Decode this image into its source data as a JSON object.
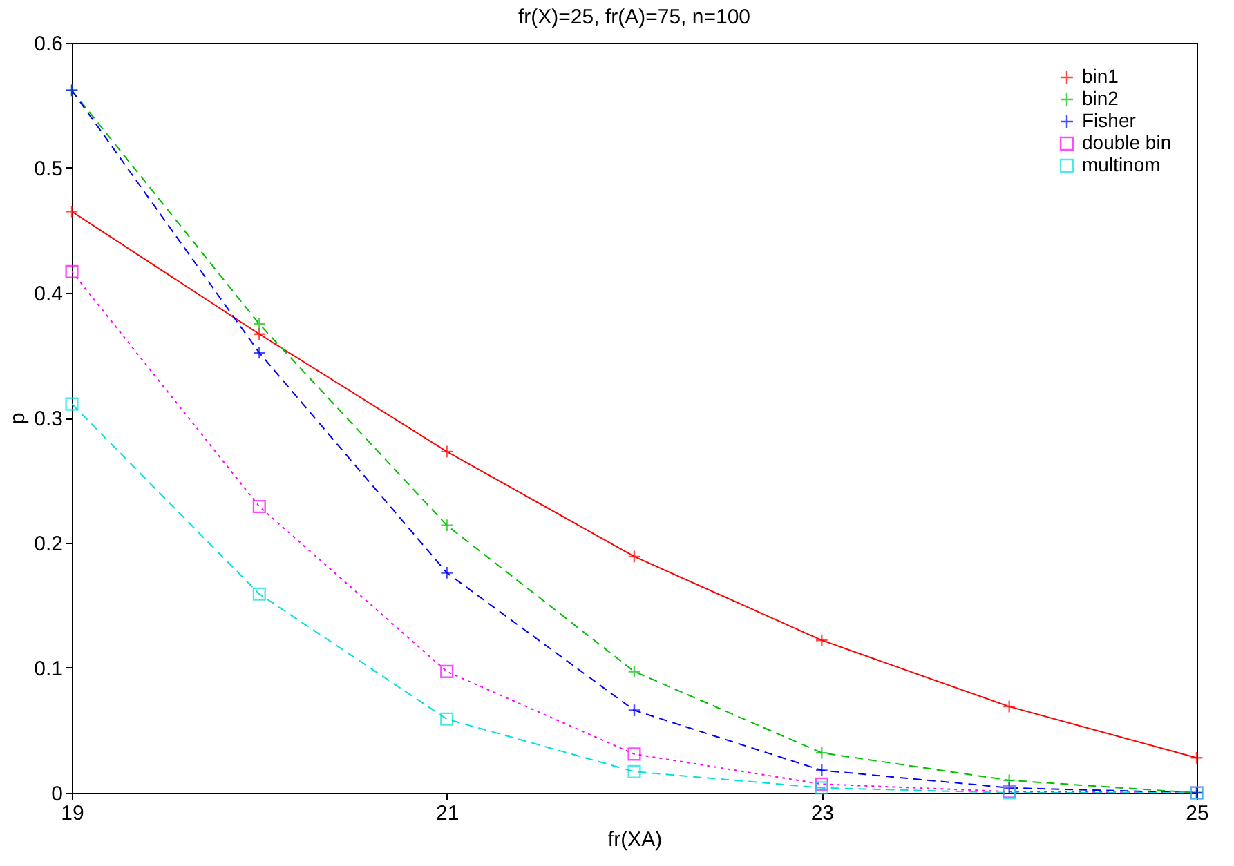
{
  "chart_data": {
    "type": "line",
    "title": "fr(X)=25, fr(A)=75, n=100",
    "xlabel": "fr(XA)",
    "ylabel": "p",
    "x": [
      19,
      20,
      21,
      22,
      23,
      24,
      25
    ],
    "xlim": [
      19,
      25
    ],
    "xticks": [
      19,
      21,
      23,
      25
    ],
    "ylim": [
      0,
      0.6
    ],
    "yticks": [
      0,
      0.1,
      0.2,
      0.3,
      0.4,
      0.5,
      0.6
    ],
    "grid": false,
    "legend": "top right",
    "series": [
      {
        "name": "bin1",
        "color": "#ff0000",
        "marker": "cross",
        "line_style": "solid",
        "values": [
          0.465,
          0.367,
          0.273,
          0.189,
          0.122,
          0.069,
          0.028
        ]
      },
      {
        "name": "bin2",
        "color": "#00c000",
        "marker": "cross",
        "line_style": "dashed",
        "values": [
          0.562,
          0.375,
          0.214,
          0.097,
          0.032,
          0.01,
          0.0
        ]
      },
      {
        "name": "Fisher",
        "color": "#0000ff",
        "marker": "cross",
        "line_style": "dashed",
        "values": [
          0.562,
          0.352,
          0.176,
          0.066,
          0.018,
          0.004,
          0.0
        ]
      },
      {
        "name": "double bin",
        "color": "#ff00ff",
        "marker": "square",
        "line_style": "dotted",
        "values": [
          0.417,
          0.229,
          0.097,
          0.031,
          0.007,
          0.001,
          0.0
        ]
      },
      {
        "name": "multinom",
        "color": "#00e0e0",
        "marker": "square",
        "line_style": "dashed",
        "values": [
          0.311,
          0.159,
          0.059,
          0.017,
          0.004,
          0.0,
          0.0
        ]
      }
    ]
  }
}
